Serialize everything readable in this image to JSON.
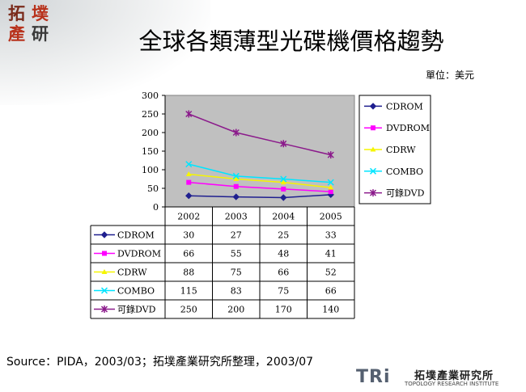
{
  "logo": {
    "chars": [
      "拓",
      "墣",
      "產",
      "研"
    ]
  },
  "slide": {
    "title": "全球各類薄型光碟機價格趨勢",
    "unit": "單位：美元",
    "source": "Source：PIDA，2003/03；拓墣產業研究所整理，2003/07"
  },
  "footer": {
    "mark": "TRi",
    "name": "拓墣產業研究所",
    "english": "TOPOLOGY RESEARCH INSTITUTE"
  },
  "chart_data": {
    "type": "line",
    "categories": [
      "2002",
      "2003",
      "2004",
      "2005"
    ],
    "ylim": [
      0,
      300
    ],
    "yticks": [
      0,
      50,
      100,
      150,
      200,
      250,
      300
    ],
    "legend_position": "right",
    "grid": false,
    "data_table": true,
    "series": [
      {
        "name": "CDROM",
        "values": [
          30,
          27,
          25,
          33
        ],
        "color": "#1f1f8f",
        "marker": "diamond"
      },
      {
        "name": "DVDROM",
        "values": [
          66,
          55,
          48,
          41
        ],
        "color": "#ff00ff",
        "marker": "square"
      },
      {
        "name": "CDRW",
        "values": [
          88,
          75,
          66,
          52
        ],
        "color": "#f5f500",
        "marker": "triangle"
      },
      {
        "name": "COMBO",
        "values": [
          115,
          83,
          75,
          66
        ],
        "color": "#00e5ff",
        "marker": "x"
      },
      {
        "name": "可錄DVD",
        "values": [
          250,
          200,
          170,
          140
        ],
        "color": "#8b1a8b",
        "marker": "star"
      }
    ]
  }
}
